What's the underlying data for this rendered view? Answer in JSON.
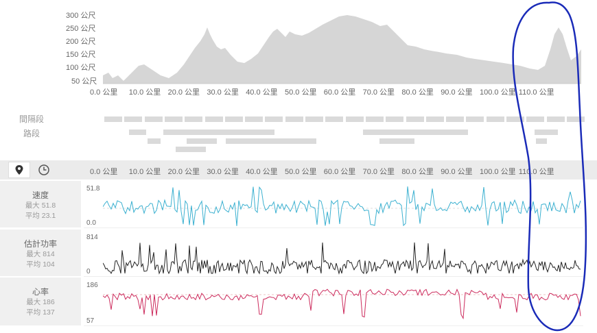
{
  "elevation": {
    "y_ticks": [
      "300 公尺",
      "250 公尺",
      "200 公尺",
      "150 公尺",
      "100 公尺",
      "50 公尺"
    ],
    "x_ticks": [
      "0.0 公里",
      "10.0 公里",
      "20.0 公里",
      "30.0 公里",
      "40.0 公里",
      "50.0 公里",
      "60.0 公里",
      "70.0 公里",
      "80.0 公里",
      "90.0 公里",
      "100.0 公里",
      "110.0 公里"
    ],
    "fill_color": "#d6d6d6"
  },
  "segments": {
    "interval_label": "間隔段",
    "route_label": "路段",
    "color": "#dadada"
  },
  "toolbar": {
    "location_icon": "map-pin-icon",
    "time_icon": "clock-icon",
    "x_ticks": [
      "0.0 公里",
      "10.0 公里",
      "20.0 公里",
      "30.0 公里",
      "40.0 公里",
      "50.0 公里",
      "60.0 公里",
      "70.0 公里",
      "80.0 公里",
      "90.0 公里",
      "100.0 公里",
      "110.0 公里"
    ]
  },
  "metrics": {
    "speed": {
      "name": "速度",
      "max": "最大 51.8",
      "avg": "平均 23.1",
      "top": "51.8",
      "bottom": "0.0",
      "color": "#3ab0d0"
    },
    "power": {
      "name": "估計功率",
      "max": "最大 814",
      "avg": "平均 104",
      "top": "814",
      "bottom": "0",
      "color": "#222222"
    },
    "hr": {
      "name": "心率",
      "max": "最大 186",
      "avg": "平均 137",
      "top": "186",
      "bottom": "57",
      "color": "#cc2a5c"
    }
  },
  "annotation": {
    "color": "#1a2bb8",
    "shape": "hand-drawn ellipse"
  }
}
